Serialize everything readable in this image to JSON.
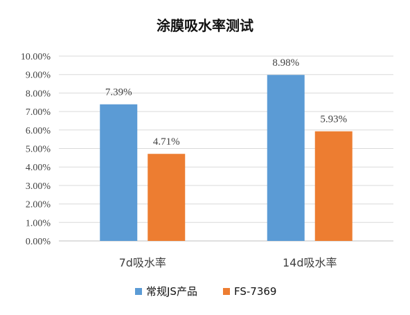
{
  "chart_data": {
    "type": "bar",
    "title": "涂膜吸水率测试",
    "categories": [
      "7d吸水率",
      "14d吸水率"
    ],
    "series": [
      {
        "name": "常规JS产品",
        "values": [
          7.39,
          8.98
        ],
        "color": "#5B9BD5"
      },
      {
        "name": "FS-7369",
        "values": [
          4.71,
          5.93
        ],
        "color": "#ED7D31"
      }
    ],
    "data_labels": [
      [
        "7.39%",
        "8.98%"
      ],
      [
        "4.71%",
        "5.93%"
      ]
    ],
    "ylim": [
      0,
      10
    ],
    "yticks": [
      "0.00%",
      "1.00%",
      "2.00%",
      "3.00%",
      "4.00%",
      "5.00%",
      "6.00%",
      "7.00%",
      "8.00%",
      "9.00%",
      "10.00%"
    ],
    "grid": true,
    "legend_position": "bottom",
    "xlabel": "",
    "ylabel": ""
  }
}
